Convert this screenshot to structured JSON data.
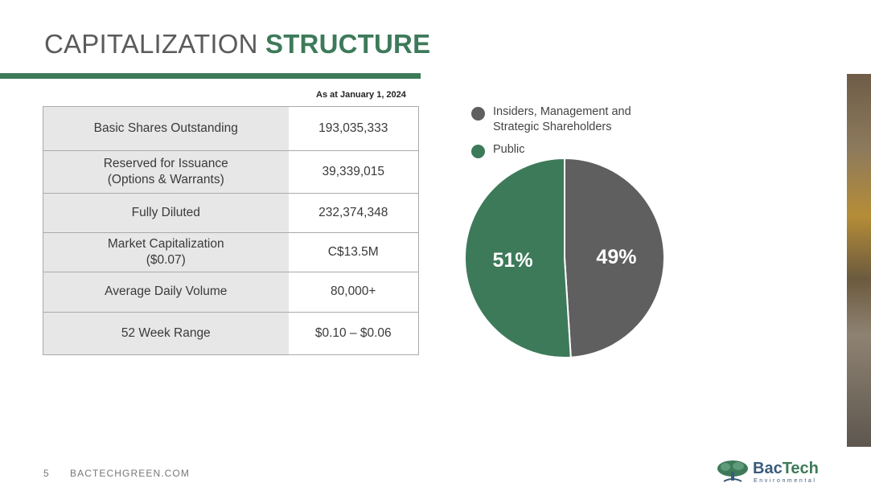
{
  "slide": {
    "title_light": "CAPITALIZATION",
    "title_bold": "STRUCTURE",
    "as_of": "As at January 1, 2024",
    "page_number": "5",
    "website": "BACTECHGREEN.COM"
  },
  "table": {
    "rows": [
      {
        "label": "Basic Shares Outstanding",
        "value": "193,035,333"
      },
      {
        "label": "Reserved for Issuance\n(Options & Warrants)",
        "value": "39,339,015"
      },
      {
        "label": "Fully Diluted",
        "value": "232,374,348"
      },
      {
        "label": "Market Capitalization\n($0.07)",
        "value": "C$13.5M"
      },
      {
        "label": "Average Daily Volume",
        "value": "80,000+"
      },
      {
        "label": "52 Week Range",
        "value": "$0.10 – $0.06"
      }
    ]
  },
  "legend": {
    "items": [
      {
        "label": "Insiders, Management and\nStrategic Shareholders",
        "color": "#5f5f5f"
      },
      {
        "label": "Public",
        "color": "#3d7a5a"
      }
    ]
  },
  "logo": {
    "name_part1": "Bac",
    "name_part2": "Tech",
    "subtitle": "Environmental"
  },
  "chart_data": {
    "type": "pie",
    "slices": [
      {
        "label": "Insiders, Management and Strategic Shareholders",
        "value": 49,
        "display": "49%",
        "color": "#5f5f5f"
      },
      {
        "label": "Public",
        "value": 51,
        "display": "51%",
        "color": "#3d7a5a"
      }
    ]
  }
}
